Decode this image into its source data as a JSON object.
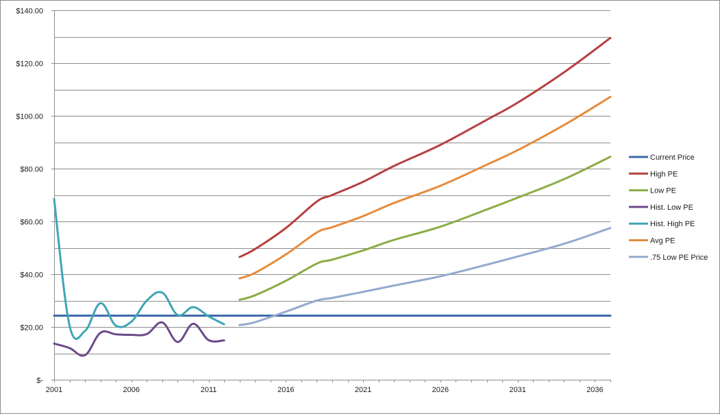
{
  "chart_data": {
    "type": "line",
    "title": "",
    "xlabel": "",
    "ylabel": "",
    "xlim": [
      2001,
      2037
    ],
    "ylim": [
      0,
      140
    ],
    "grid": true,
    "legend_position": "right",
    "x_ticks": [
      2001,
      2006,
      2011,
      2016,
      2021,
      2026,
      2031,
      2036
    ],
    "x_tick_labels": [
      "2001",
      "2006",
      "2011",
      "2016",
      "2021",
      "2026",
      "2031",
      "2036"
    ],
    "y_ticks": [
      0,
      20,
      40,
      60,
      80,
      100,
      120,
      140
    ],
    "y_tick_labels": [
      "$-",
      "$20.00",
      "$40.00",
      "$60.00",
      "$80.00",
      "$100.00",
      "$120.00",
      "$140.00"
    ],
    "series": [
      {
        "name": "Current Price",
        "color": "#3c6aa8",
        "x": [
          2001,
          2037
        ],
        "values": [
          24.3,
          24.3
        ]
      },
      {
        "name": "High PE",
        "color": "#b6403f",
        "x": [
          2013,
          2014,
          2016,
          2018,
          2019,
          2021,
          2023,
          2026,
          2029,
          2031,
          2034,
          2037
        ],
        "values": [
          46.5,
          49.5,
          57.5,
          67.5,
          70.0,
          75.0,
          81.0,
          89.0,
          98.5,
          105.0,
          116.5,
          129.5
        ]
      },
      {
        "name": "Low PE",
        "color": "#8bac45",
        "x": [
          2013,
          2014,
          2016,
          2018,
          2019,
          2021,
          2023,
          2026,
          2029,
          2031,
          2034,
          2037
        ],
        "values": [
          30.3,
          32.0,
          37.5,
          44.0,
          45.5,
          49.0,
          53.0,
          58.0,
          64.5,
          69.0,
          76.0,
          84.5
        ]
      },
      {
        "name": "Hist. Low PE",
        "color": "#6b4a8a",
        "x": [
          2001,
          2002,
          2003,
          2004,
          2005,
          2006,
          2007,
          2008,
          2009,
          2010,
          2011,
          2012
        ],
        "values": [
          13.7,
          12.0,
          9.3,
          17.8,
          17.2,
          17.0,
          17.3,
          21.7,
          14.3,
          21.2,
          15.0,
          14.9
        ]
      },
      {
        "name": "Hist. High PE",
        "color": "#3ea4b5",
        "x": [
          2001,
          2002,
          2003,
          2004,
          2005,
          2006,
          2007,
          2008,
          2009,
          2010,
          2011,
          2012
        ],
        "values": [
          68.5,
          20.5,
          18.5,
          29.0,
          20.5,
          22.0,
          30.0,
          33.0,
          24.5,
          27.5,
          24.0,
          21.0
        ]
      },
      {
        "name": "Avg PE",
        "color": "#e68b3c",
        "x": [
          2013,
          2014,
          2016,
          2018,
          2019,
          2021,
          2023,
          2026,
          2029,
          2031,
          2034,
          2037
        ],
        "values": [
          38.4,
          40.5,
          47.5,
          55.8,
          57.8,
          62.0,
          67.0,
          73.5,
          81.5,
          87.0,
          96.5,
          107.2
        ]
      },
      {
        "name": ".75 Low PE Price",
        "color": "#93a9cf",
        "x": [
          2013,
          2014,
          2016,
          2018,
          2019,
          2021,
          2023,
          2026,
          2029,
          2031,
          2034,
          2037
        ],
        "values": [
          20.7,
          21.8,
          25.8,
          30.0,
          31.0,
          33.3,
          35.7,
          39.2,
          43.6,
          46.7,
          51.5,
          57.5
        ]
      }
    ]
  }
}
